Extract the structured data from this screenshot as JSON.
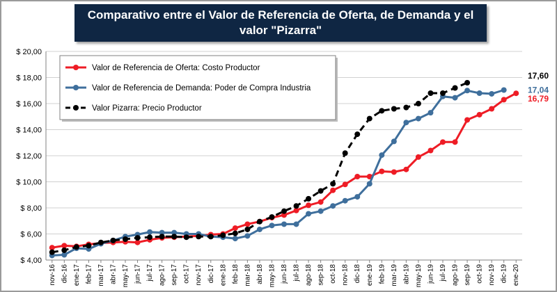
{
  "chart_data": {
    "type": "line",
    "title": "Comparativo entre el Valor de Referencia de Oferta, de Demanda y el valor \"Pizarra\"",
    "xlabel": "",
    "ylabel": "",
    "ylim": [
      4,
      20
    ],
    "yticks": [
      "$ 4,00",
      "$ 6,00",
      "$ 8,00",
      "$ 10,00",
      "$ 12,00",
      "$ 14,00",
      "$ 16,00",
      "$ 18,00",
      "$ 20,00"
    ],
    "ytick_values": [
      4,
      6,
      8,
      10,
      12,
      14,
      16,
      18,
      20
    ],
    "grid": true,
    "legend_position": "top-left",
    "x_labels": [
      "nov-16",
      "dic-16",
      "ene-17",
      "feb-17",
      "mar-17",
      "abr-17",
      "may-17",
      "jun-17",
      "jul-17",
      "ago-17",
      "sep-17",
      "oct-17",
      "nov-17",
      "dic-17",
      "ene-18",
      "feb-18",
      "mar-18",
      "abr-18",
      "may-18",
      "jun-18",
      "jul-18",
      "ago-18",
      "sep-18",
      "oct-18",
      "nov-18",
      "dic-18",
      "ene-19",
      "feb-19",
      "mar-19",
      "abr-19",
      "may-19",
      "jun-19",
      "jul-19",
      "ago-19",
      "sep-19",
      "oct-19",
      "nov-19",
      "dic-19",
      "ene-20"
    ],
    "series": [
      {
        "name": "Valor de Referencia de Oferta: Costo Productor",
        "color": "#ee1c25",
        "style": "solid",
        "values": [
          4.95,
          5.1,
          5.05,
          5.2,
          5.3,
          5.35,
          5.4,
          5.35,
          5.55,
          5.7,
          5.75,
          5.8,
          5.85,
          5.95,
          6.0,
          6.45,
          6.75,
          6.95,
          7.25,
          7.45,
          7.8,
          8.2,
          8.45,
          9.35,
          9.8,
          10.4,
          10.4,
          10.8,
          10.75,
          10.95,
          11.9,
          12.4,
          13.05,
          13.05,
          14.75,
          15.15,
          15.6,
          16.3,
          16.79
        ],
        "end_label": "16,79"
      },
      {
        "name": "Valor de Referencia de Demanda: Poder de Compra Industria",
        "color": "#3f6f9c",
        "style": "solid",
        "values": [
          4.35,
          4.4,
          4.9,
          4.85,
          5.25,
          5.5,
          5.8,
          5.95,
          6.15,
          6.1,
          6.1,
          6.0,
          6.0,
          5.8,
          5.75,
          5.65,
          5.85,
          6.35,
          6.65,
          6.75,
          6.75,
          7.55,
          7.75,
          8.15,
          8.55,
          8.85,
          9.85,
          12.05,
          13.1,
          14.55,
          14.85,
          15.3,
          16.55,
          16.45,
          17.0,
          16.8,
          16.75,
          17.04
        ],
        "end_label": "17,04"
      },
      {
        "name": "Valor Pizarra: Precio Productor",
        "color": "#000000",
        "style": "dashed",
        "values": [
          4.6,
          4.75,
          5.0,
          5.1,
          5.35,
          5.5,
          5.6,
          5.7,
          5.75,
          5.8,
          5.8,
          5.75,
          5.8,
          5.8,
          5.9,
          6.05,
          6.35,
          6.95,
          7.3,
          7.75,
          8.15,
          8.7,
          9.3,
          9.85,
          12.2,
          13.65,
          14.85,
          15.45,
          15.6,
          15.7,
          16.0,
          16.8,
          16.8,
          17.2,
          17.6
        ],
        "end_label": "17,60"
      }
    ]
  }
}
